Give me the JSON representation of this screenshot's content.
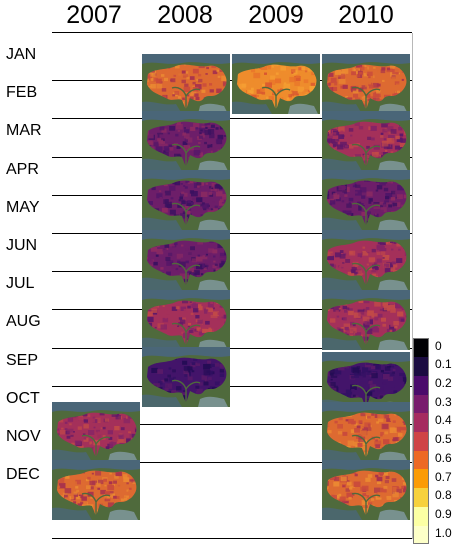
{
  "years": [
    "2007",
    "2008",
    "2009",
    "2010"
  ],
  "months": [
    "JAN",
    "FEB",
    "MAR",
    "APR",
    "MAY",
    "JUN",
    "JUL",
    "AUG",
    "SEP",
    "OCT",
    "NOV",
    "DEC"
  ],
  "tiles": [
    {
      "year": "2007",
      "month": "OCT-NOV",
      "tone": "medium"
    },
    {
      "year": "2007",
      "month": "NOV-DEC",
      "tone": "bright"
    },
    {
      "year": "2008",
      "month": "JAN-FEB",
      "tone": "bright"
    },
    {
      "year": "2008",
      "month": "MAR-APR",
      "tone": "dark"
    },
    {
      "year": "2008",
      "month": "APR-MAY",
      "tone": "dark"
    },
    {
      "year": "2008",
      "month": "JUN-JUL",
      "tone": "dark"
    },
    {
      "year": "2008",
      "month": "JUL-AUG",
      "tone": "medium"
    },
    {
      "year": "2008",
      "month": "AUG-SEP",
      "tone": "darkest"
    },
    {
      "year": "2009",
      "month": "JAN-FEB",
      "tone": "brightest"
    },
    {
      "year": "2010",
      "month": "JAN-FEB",
      "tone": "bright"
    },
    {
      "year": "2010",
      "month": "MAR-APR",
      "tone": "medium"
    },
    {
      "year": "2010",
      "month": "APR-MAY",
      "tone": "dark"
    },
    {
      "year": "2010",
      "month": "JUN-JUL",
      "tone": "medium"
    },
    {
      "year": "2010",
      "month": "JUL-AUG",
      "tone": "medium"
    },
    {
      "year": "2010",
      "month": "SEP-OCT",
      "tone": "darkest"
    },
    {
      "year": "2010",
      "month": "OCT-NOV",
      "tone": "bright"
    },
    {
      "year": "2010",
      "month": "NOV-DEC",
      "tone": "bright"
    }
  ],
  "colorbar": {
    "labels": [
      "0",
      "0.1",
      "0.2",
      "0.3",
      "0.4",
      "0.5",
      "0.6",
      "0.7",
      "0.8",
      "0.9",
      "1.0"
    ],
    "colors": [
      "#000004",
      "#1b0c41",
      "#4a0c6b",
      "#781c6d",
      "#a52c60",
      "#cf4446",
      "#ed6925",
      "#fb9b06",
      "#f7d13d",
      "#fcffa4",
      "#fdffc8"
    ]
  },
  "palette": {
    "brightest": [
      "#f5a033",
      "#ee8c2c",
      "#e8712a",
      "#d9562f"
    ],
    "bright": [
      "#eb8a32",
      "#dd6a31",
      "#c94a3c",
      "#a8324c"
    ],
    "medium": [
      "#c24a48",
      "#a4305a",
      "#842466",
      "#5e1868"
    ],
    "dark": [
      "#8c2a62",
      "#6d1e69",
      "#4f1569",
      "#3a1160"
    ],
    "darkest": [
      "#5a1a68",
      "#43146a",
      "#311063",
      "#240c55"
    ],
    "land": "#4f6a3c",
    "water": "#4a6678",
    "pale": "#8aa3b0"
  }
}
